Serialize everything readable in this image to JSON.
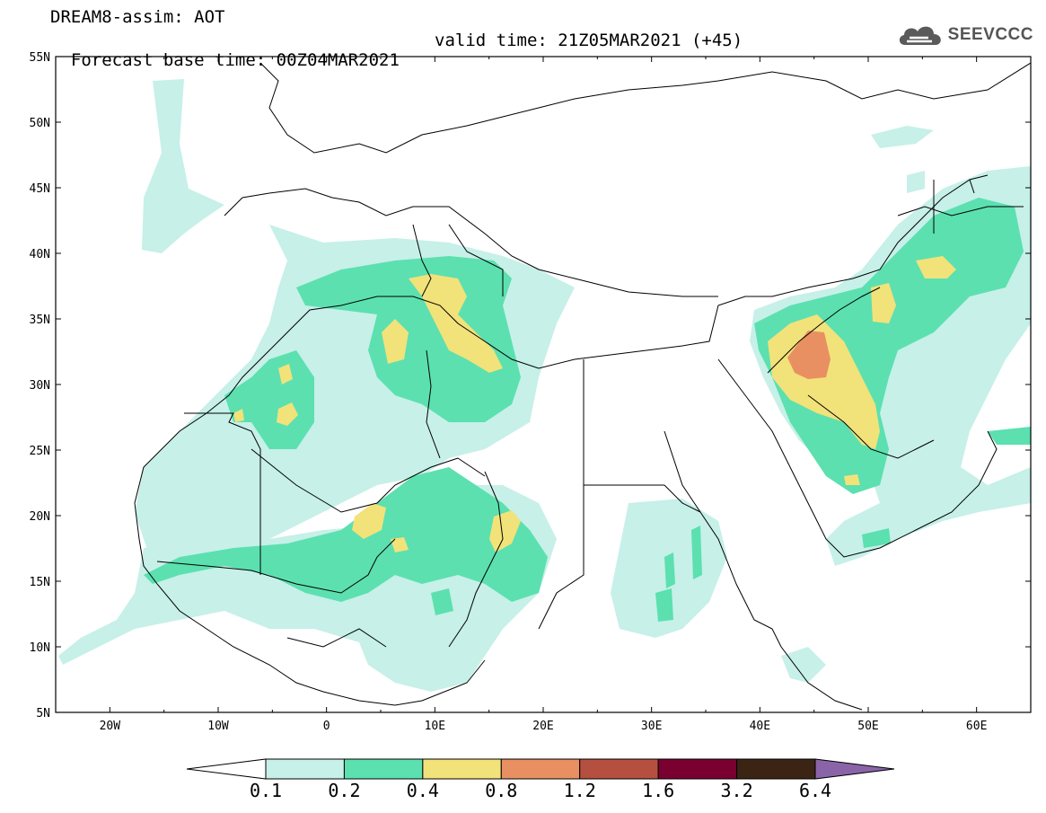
{
  "title": {
    "line1": "DREAM8-assim: AOT",
    "base": "Forecast base time: 00Z04MAR2021",
    "valid": "valid time: 21Z05MAR2021 (+45)"
  },
  "logo": {
    "text": "SEEVCCC",
    "icon": "cloud-logo-icon"
  },
  "map": {
    "lon_range": [
      -25,
      65
    ],
    "lat_range": [
      5,
      55
    ],
    "lat_ticks": [
      {
        "value": 55,
        "label": "55N"
      },
      {
        "value": 50,
        "label": "50N"
      },
      {
        "value": 45,
        "label": "45N"
      },
      {
        "value": 40,
        "label": "40N"
      },
      {
        "value": 35,
        "label": "35N"
      },
      {
        "value": 30,
        "label": "30N"
      },
      {
        "value": 25,
        "label": "25N"
      },
      {
        "value": 20,
        "label": "20N"
      },
      {
        "value": 15,
        "label": "15N"
      },
      {
        "value": 10,
        "label": "10N"
      },
      {
        "value": 5,
        "label": "5N"
      }
    ],
    "lon_ticks": [
      {
        "value": -20,
        "label": "20W"
      },
      {
        "value": -10,
        "label": "10W"
      },
      {
        "value": 0,
        "label": "0"
      },
      {
        "value": 10,
        "label": "10E"
      },
      {
        "value": 20,
        "label": "20E"
      },
      {
        "value": 30,
        "label": "30E"
      },
      {
        "value": 40,
        "label": "40E"
      },
      {
        "value": 50,
        "label": "50E"
      },
      {
        "value": 60,
        "label": "60E"
      }
    ]
  },
  "colorbar": {
    "levels": [
      "0.1",
      "0.2",
      "0.4",
      "0.8",
      "1.2",
      "1.6",
      "3.2",
      "6.4"
    ],
    "colors": [
      "#ffffff",
      "#c6f0e8",
      "#5ce0b0",
      "#f2e27a",
      "#e99062",
      "#b55040",
      "#7a0030",
      "#3c2414",
      "#8a64a8"
    ]
  },
  "colors": {
    "c1": "#c6f0e8",
    "c2": "#5ce0b0",
    "c3": "#f2e27a",
    "c4": "#e99062"
  }
}
